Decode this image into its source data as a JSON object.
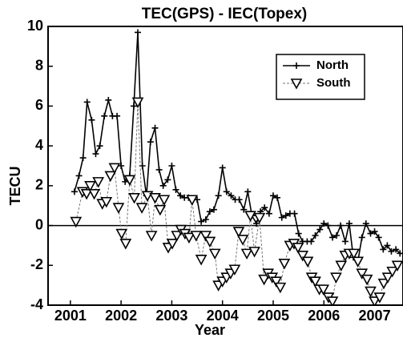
{
  "chart_data": {
    "type": "line",
    "title": "TEC(GPS) - IEC(Topex)",
    "xlabel": "Year",
    "ylabel": "TECU",
    "xlim": [
      2000.56,
      2007.56
    ],
    "xticks": [
      2001,
      2002,
      2003,
      2004,
      2005,
      2006,
      2007
    ],
    "ylim": [
      -4,
      10
    ],
    "yticks": [
      -4,
      -2,
      0,
      2,
      4,
      6,
      8,
      10
    ],
    "zero_line": true,
    "legend": "upper right",
    "series": [
      {
        "name": "North",
        "color": "#000000",
        "marker": "plus",
        "dashed": false,
        "x": [
          2001.08,
          2001.17,
          2001.25,
          2001.33,
          2001.42,
          2001.5,
          2001.58,
          2001.67,
          2001.75,
          2001.83,
          2001.92,
          2002,
          2002.08,
          2002.17,
          2002.25,
          2002.33,
          2002.42,
          2002.5,
          2002.58,
          2002.67,
          2002.75,
          2002.83,
          2002.92,
          2003,
          2003.08,
          2003.17,
          2003.25,
          2003.33,
          2003.42,
          2003.5,
          2003.58,
          2003.67,
          2003.75,
          2003.83,
          2003.92,
          2004,
          2004.08,
          2004.17,
          2004.25,
          2004.33,
          2004.42,
          2004.5,
          2004.58,
          2004.67,
          2004.75,
          2004.83,
          2004.92,
          2005,
          2005.08,
          2005.17,
          2005.25,
          2005.33,
          2005.42,
          2005.5,
          2005.58,
          2005.67,
          2005.75,
          2005.83,
          2005.92,
          2006,
          2006.08,
          2006.17,
          2006.25,
          2006.33,
          2006.42,
          2006.5,
          2006.58,
          2006.67,
          2006.75,
          2006.83,
          2006.92,
          2007,
          2007.08,
          2007.17,
          2007.25,
          2007.33,
          2007.42,
          2007.5,
          2007.58
        ],
        "values": [
          1.7,
          2.5,
          3.4,
          6.2,
          5.3,
          3.6,
          4.0,
          5.5,
          6.3,
          5.5,
          5.5,
          3.0,
          2.2,
          2.5,
          6.0,
          9.7,
          3.0,
          1.5,
          4.2,
          4.9,
          2.8,
          2.0,
          2.3,
          3.0,
          1.8,
          1.5,
          1.4,
          1.4,
          1.3,
          1.3,
          0.2,
          0.3,
          0.7,
          0.8,
          1.5,
          2.9,
          1.7,
          1.5,
          1.3,
          1.3,
          0.8,
          1.7,
          0.5,
          0.1,
          0.7,
          0.9,
          0.6,
          1.5,
          1.4,
          0.4,
          0.5,
          0.6,
          0.6,
          -0.4,
          -0.8,
          -0.8,
          -0.8,
          -0.5,
          -0.2,
          0.1,
          0,
          -0.6,
          -0.5,
          0,
          -0.8,
          0.1,
          -1.6,
          -1.8,
          -0.6,
          0.1,
          -0.4,
          -0.3,
          -0.6,
          -1.2,
          -1.0,
          -1.3,
          -1.2,
          -1.4,
          -1.4
        ]
      },
      {
        "name": "South",
        "color": "#000000",
        "marker": "triangle-down",
        "dashed": true,
        "x": [
          2001.11,
          2001.24,
          2001.32,
          2001.39,
          2001.47,
          2001.55,
          2001.63,
          2001.71,
          2001.79,
          2001.87,
          2001.95,
          2002.01,
          2002.09,
          2002.17,
          2002.26,
          2002.33,
          2002.41,
          2002.52,
          2002.6,
          2002.67,
          2002.77,
          2002.85,
          2002.93,
          2003.01,
          2003.1,
          2003.18,
          2003.26,
          2003.34,
          2003.4,
          2003.48,
          2003.58,
          2003.67,
          2003.75,
          2003.85,
          2003.92,
          2004,
          2004.08,
          2004.16,
          2004.24,
          2004.32,
          2004.4,
          2004.48,
          2004.55,
          2004.63,
          2004.73,
          2004.82,
          2004.9,
          2004.98,
          2005.06,
          2005.14,
          2005.22,
          2005.33,
          2005.41,
          2005.49,
          2005.58,
          2005.68,
          2005.76,
          2005.83,
          2005.91,
          2005.99,
          2006.09,
          2006.17,
          2006.24,
          2006.34,
          2006.42,
          2006.5,
          2006.59,
          2006.67,
          2006.75,
          2006.85,
          2006.92,
          2007,
          2007.1,
          2007.18,
          2007.26,
          2007.35,
          2007.45
        ],
        "values": [
          0.2,
          1.7,
          1.6,
          2.0,
          1.6,
          2.2,
          1.1,
          1.2,
          2.5,
          2.9,
          0.9,
          -0.4,
          -0.9,
          2.3,
          1.4,
          6.2,
          0.9,
          1.5,
          -0.5,
          1.4,
          0.8,
          1.3,
          -1.1,
          -0.9,
          -0.5,
          -0.2,
          -0.4,
          -0.6,
          1.3,
          -0.5,
          -1.7,
          -0.5,
          -0.8,
          -1.4,
          -3.0,
          -2.8,
          -2.6,
          -2.4,
          -2.2,
          -0.3,
          -0.7,
          -1.4,
          0.5,
          -1.3,
          0.4,
          -2.7,
          -2.4,
          -2.6,
          -2.8,
          -3.1,
          -1.9,
          -1.0,
          -0.9,
          -1.1,
          -1.5,
          -1.8,
          -2.6,
          -2.8,
          -3.2,
          -3.2,
          -3.6,
          -3.8,
          -2.6,
          -2.0,
          -1.5,
          -1.4,
          -1.4,
          -1.8,
          -2.4,
          -2.7,
          -3.3,
          -3.8,
          -3.6,
          -2.9,
          -2.6,
          -2.3,
          -2.0
        ]
      }
    ]
  }
}
